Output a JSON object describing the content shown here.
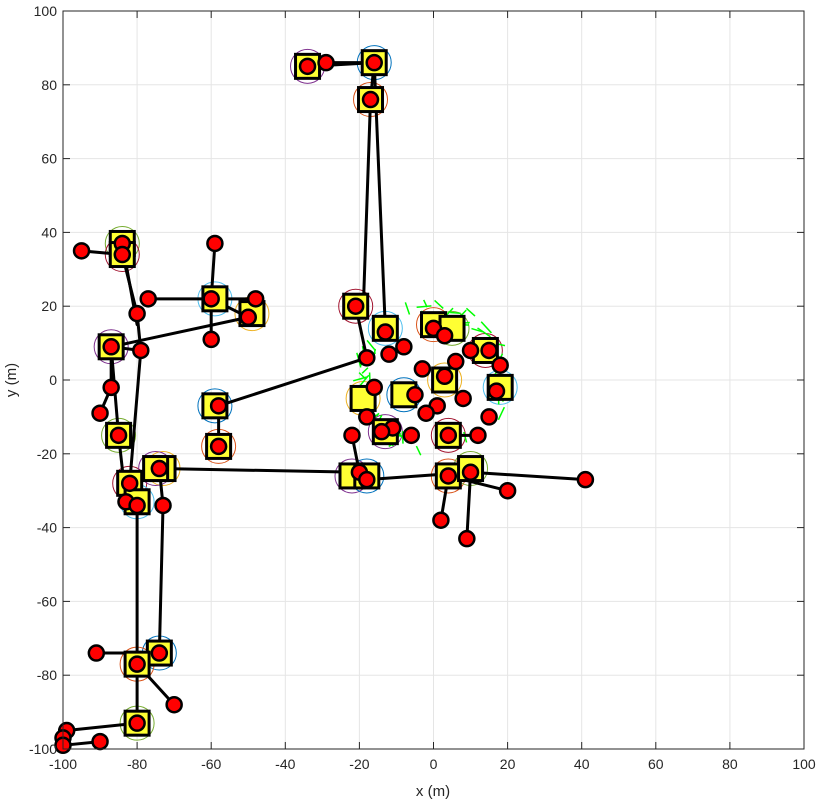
{
  "chart_data": {
    "type": "scatter",
    "title": "",
    "xlabel": "x (m)",
    "ylabel": "y (m)",
    "xlim": [
      -100,
      100
    ],
    "ylim": [
      -100,
      100
    ],
    "grid": true,
    "x_ticks": [
      -100,
      -80,
      -60,
      -40,
      -20,
      0,
      20,
      40,
      60,
      80,
      100
    ],
    "y_ticks": [
      -100,
      -80,
      -60,
      -40,
      -20,
      0,
      20,
      40,
      60,
      80,
      100
    ],
    "x_tick_labels": [
      "-100",
      "-80",
      "-60",
      "-40",
      "-20",
      "0",
      "20",
      "40",
      "60",
      "80",
      "100"
    ],
    "y_tick_labels": [
      "-100",
      "-80",
      "-60",
      "-40",
      "-20",
      "0",
      "20",
      "40",
      "60",
      "80",
      "100"
    ],
    "colors": {
      "node_fill": "#ff0000",
      "node_stroke": "#000000",
      "square_fill": "#ffff33",
      "link": "#000000",
      "cluster_marks": "#00ff00",
      "range_circles": [
        "#7e2f8e",
        "#0072bd",
        "#d95319",
        "#77ac30",
        "#a2142f",
        "#4dbeee",
        "#edb120"
      ]
    },
    "square_nodes": [
      [
        -34,
        85
      ],
      [
        -16,
        86
      ],
      [
        -17,
        76
      ],
      [
        -84,
        37
      ],
      [
        -84,
        34
      ],
      [
        -59,
        22
      ],
      [
        -49,
        18
      ],
      [
        -87,
        9
      ],
      [
        -59,
        -7
      ],
      [
        -58,
        -18
      ],
      [
        -85,
        -15
      ],
      [
        -82,
        -28
      ],
      [
        -80,
        -33
      ],
      [
        -73,
        -24
      ],
      [
        -75,
        -24
      ],
      [
        -74,
        -74
      ],
      [
        -80,
        -77
      ],
      [
        -80,
        -93
      ],
      [
        -21,
        20
      ],
      [
        -13,
        14
      ],
      [
        -19,
        -5
      ],
      [
        -13,
        -14
      ],
      [
        -8,
        -4
      ],
      [
        0,
        15
      ],
      [
        5,
        14
      ],
      [
        14,
        8
      ],
      [
        18,
        -2
      ],
      [
        3,
        0
      ],
      [
        -22,
        -26
      ],
      [
        -18,
        -26
      ],
      [
        4,
        -26
      ],
      [
        10,
        -24
      ],
      [
        4,
        -15
      ]
    ],
    "nodes": [
      [
        -34,
        85
      ],
      [
        -29,
        86
      ],
      [
        -16,
        86
      ],
      [
        -17,
        76
      ],
      [
        -95,
        35
      ],
      [
        -84,
        37
      ],
      [
        -84,
        34
      ],
      [
        -59,
        37
      ],
      [
        -77,
        22
      ],
      [
        -60,
        22
      ],
      [
        -48,
        22
      ],
      [
        -50,
        17
      ],
      [
        -80,
        18
      ],
      [
        -87,
        9
      ],
      [
        -60,
        11
      ],
      [
        -79,
        8
      ],
      [
        -87,
        -2
      ],
      [
        -90,
        -9
      ],
      [
        -58,
        -7
      ],
      [
        -85,
        -15
      ],
      [
        -58,
        -18
      ],
      [
        -82,
        -28
      ],
      [
        -83,
        -33
      ],
      [
        -80,
        -34
      ],
      [
        -74,
        -24
      ],
      [
        -73,
        -34
      ],
      [
        -91,
        -74
      ],
      [
        -74,
        -74
      ],
      [
        -80,
        -77
      ],
      [
        -80,
        -93
      ],
      [
        -70,
        -88
      ],
      [
        -99,
        -95
      ],
      [
        -100,
        -97
      ],
      [
        -100,
        -99
      ],
      [
        -90,
        -98
      ],
      [
        -21,
        20
      ],
      [
        -18,
        6
      ],
      [
        -16,
        -2
      ],
      [
        -12,
        7
      ],
      [
        -13,
        13
      ],
      [
        -8,
        9
      ],
      [
        -5,
        -4
      ],
      [
        -11,
        -13
      ],
      [
        -14,
        -14
      ],
      [
        -6,
        -15
      ],
      [
        0,
        14
      ],
      [
        3,
        12
      ],
      [
        6,
        5
      ],
      [
        10,
        8
      ],
      [
        15,
        8
      ],
      [
        18,
        4
      ],
      [
        17,
        -3
      ],
      [
        15,
        -10
      ],
      [
        12,
        -15
      ],
      [
        3,
        1
      ],
      [
        1,
        -7
      ],
      [
        4,
        -15
      ],
      [
        -2,
        -9
      ],
      [
        8,
        -5
      ],
      [
        -3,
        3
      ],
      [
        -18,
        -10
      ],
      [
        -22,
        -15
      ],
      [
        -20,
        -25
      ],
      [
        -18,
        -27
      ],
      [
        20,
        -30
      ],
      [
        41,
        -27
      ],
      [
        4,
        -26
      ],
      [
        10,
        -25
      ],
      [
        2,
        -38
      ],
      [
        9,
        -43
      ]
    ],
    "links": [
      [
        [
          -34,
          85
        ],
        [
          -29,
          86
        ]
      ],
      [
        [
          -29,
          86
        ],
        [
          -16,
          86
        ]
      ],
      [
        [
          -34,
          85
        ],
        [
          -16,
          86
        ]
      ],
      [
        [
          -16,
          86
        ],
        [
          -17,
          76
        ]
      ],
      [
        [
          -17,
          76
        ],
        [
          -19,
          18
        ]
      ],
      [
        [
          -16,
          86
        ],
        [
          -13,
          14
        ]
      ],
      [
        [
          -95,
          35
        ],
        [
          -84,
          34
        ]
      ],
      [
        [
          -84,
          37
        ],
        [
          -84,
          34
        ]
      ],
      [
        [
          -84,
          34
        ],
        [
          -80,
          18
        ]
      ],
      [
        [
          -84,
          37
        ],
        [
          -80,
          15
        ]
      ],
      [
        [
          -80,
          18
        ],
        [
          -79,
          8
        ]
      ],
      [
        [
          -59,
          37
        ],
        [
          -60,
          22
        ]
      ],
      [
        [
          -77,
          22
        ],
        [
          -60,
          22
        ]
      ],
      [
        [
          -60,
          22
        ],
        [
          -48,
          22
        ]
      ],
      [
        [
          -60,
          22
        ],
        [
          -50,
          17
        ]
      ],
      [
        [
          -60,
          22
        ],
        [
          -60,
          11
        ]
      ],
      [
        [
          -87,
          9
        ],
        [
          -50,
          17
        ]
      ],
      [
        [
          -87,
          9
        ],
        [
          -79,
          8
        ]
      ],
      [
        [
          -87,
          9
        ],
        [
          -87,
          -2
        ]
      ],
      [
        [
          -87,
          -2
        ],
        [
          -90,
          -9
        ]
      ],
      [
        [
          -87,
          9
        ],
        [
          -85,
          -15
        ]
      ],
      [
        [
          -58,
          -7
        ],
        [
          -18,
          6
        ]
      ],
      [
        [
          -58,
          -7
        ],
        [
          -58,
          -18
        ]
      ],
      [
        [
          -79,
          8
        ],
        [
          -82,
          -28
        ]
      ],
      [
        [
          -85,
          -15
        ],
        [
          -83,
          -33
        ]
      ],
      [
        [
          -82,
          -28
        ],
        [
          -80,
          -34
        ]
      ],
      [
        [
          -80,
          -34
        ],
        [
          -80,
          -77
        ]
      ],
      [
        [
          -82,
          -28
        ],
        [
          -74,
          -24
        ]
      ],
      [
        [
          -74,
          -24
        ],
        [
          -20,
          -25
        ]
      ],
      [
        [
          -74,
          -24
        ],
        [
          -73,
          -34
        ]
      ],
      [
        [
          -73,
          -34
        ],
        [
          -74,
          -74
        ]
      ],
      [
        [
          -91,
          -74
        ],
        [
          -74,
          -74
        ]
      ],
      [
        [
          -74,
          -74
        ],
        [
          -80,
          -77
        ]
      ],
      [
        [
          -80,
          -77
        ],
        [
          -80,
          -93
        ]
      ],
      [
        [
          -80,
          -77
        ],
        [
          -70,
          -88
        ]
      ],
      [
        [
          -80,
          -93
        ],
        [
          -99,
          -95
        ]
      ],
      [
        [
          -99,
          -95
        ],
        [
          -100,
          -97
        ]
      ],
      [
        [
          -100,
          -97
        ],
        [
          -100,
          -99
        ]
      ],
      [
        [
          -100,
          -99
        ],
        [
          -90,
          -98
        ]
      ],
      [
        [
          -21,
          20
        ],
        [
          -18,
          6
        ]
      ],
      [
        [
          -22,
          -15
        ],
        [
          -20,
          -25
        ]
      ],
      [
        [
          -20,
          -25
        ],
        [
          -18,
          -27
        ]
      ],
      [
        [
          -18,
          -27
        ],
        [
          10,
          -25
        ]
      ],
      [
        [
          10,
          -25
        ],
        [
          41,
          -27
        ]
      ],
      [
        [
          4,
          -26
        ],
        [
          20,
          -30
        ]
      ],
      [
        [
          4,
          -26
        ],
        [
          2,
          -38
        ]
      ],
      [
        [
          10,
          -25
        ],
        [
          9,
          -43
        ]
      ],
      [
        [
          4,
          -15
        ],
        [
          12,
          -15
        ]
      ]
    ]
  }
}
